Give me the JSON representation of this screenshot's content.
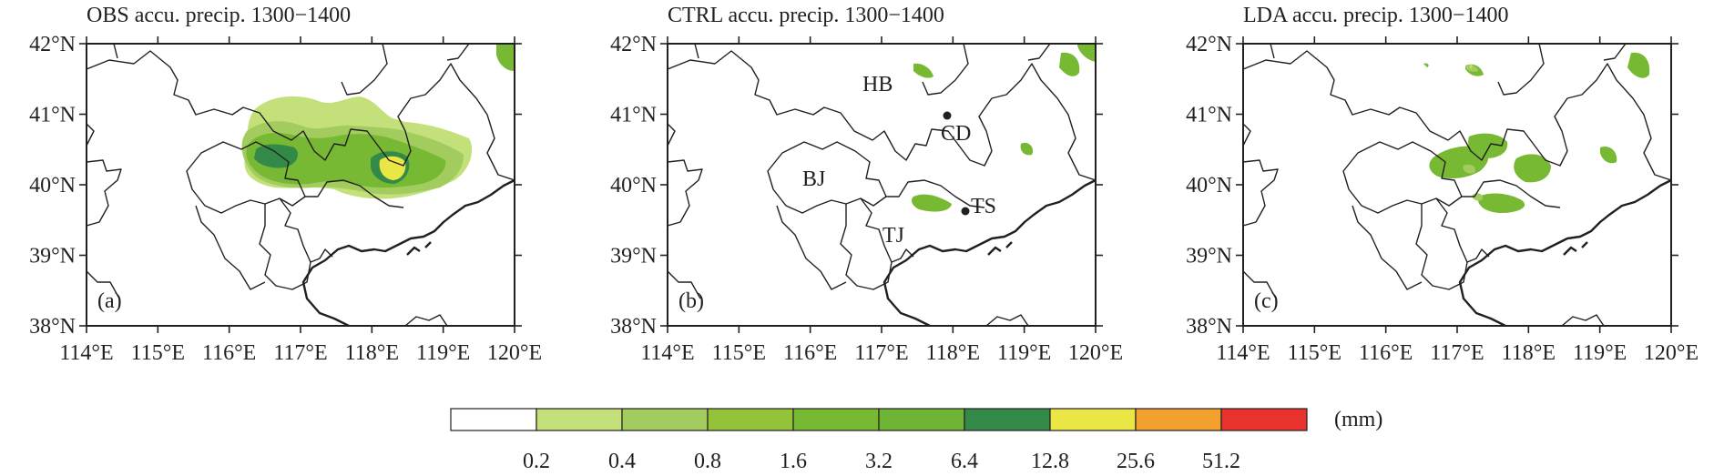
{
  "panels": [
    {
      "id": "a",
      "title": "OBS accu. precip. 1300−1400",
      "label": "(a)"
    },
    {
      "id": "b",
      "title": "CTRL accu. precip. 1300−1400",
      "label": "(b)"
    },
    {
      "id": "c",
      "title": "LDA accu. precip. 1300−1400",
      "label": "(c)"
    }
  ],
  "lat_ticks": [
    "42°N",
    "41°N",
    "40°N",
    "39°N",
    "38°N"
  ],
  "lon_ticks": [
    "114°E",
    "115°E",
    "116°E",
    "117°E",
    "118°E",
    "119°E",
    "120°E"
  ],
  "places": {
    "hb": "HB",
    "cd": "CD",
    "bj": "BJ",
    "ts": "TS",
    "tj": "TJ"
  },
  "colorbar": {
    "unit": "(mm)",
    "levels": [
      "0.2",
      "0.4",
      "0.8",
      "1.6",
      "3.2",
      "6.4",
      "12.8",
      "25.6",
      "51.2"
    ],
    "colors": [
      "#ffffff",
      "#c3e07a",
      "#a2cc5e",
      "#93c338",
      "#78b933",
      "#6eb535",
      "#338a48",
      "#eae646",
      "#f2a02e",
      "#e8322d"
    ]
  },
  "map_extent": {
    "lon": [
      114,
      120
    ],
    "lat": [
      38,
      42
    ]
  }
}
